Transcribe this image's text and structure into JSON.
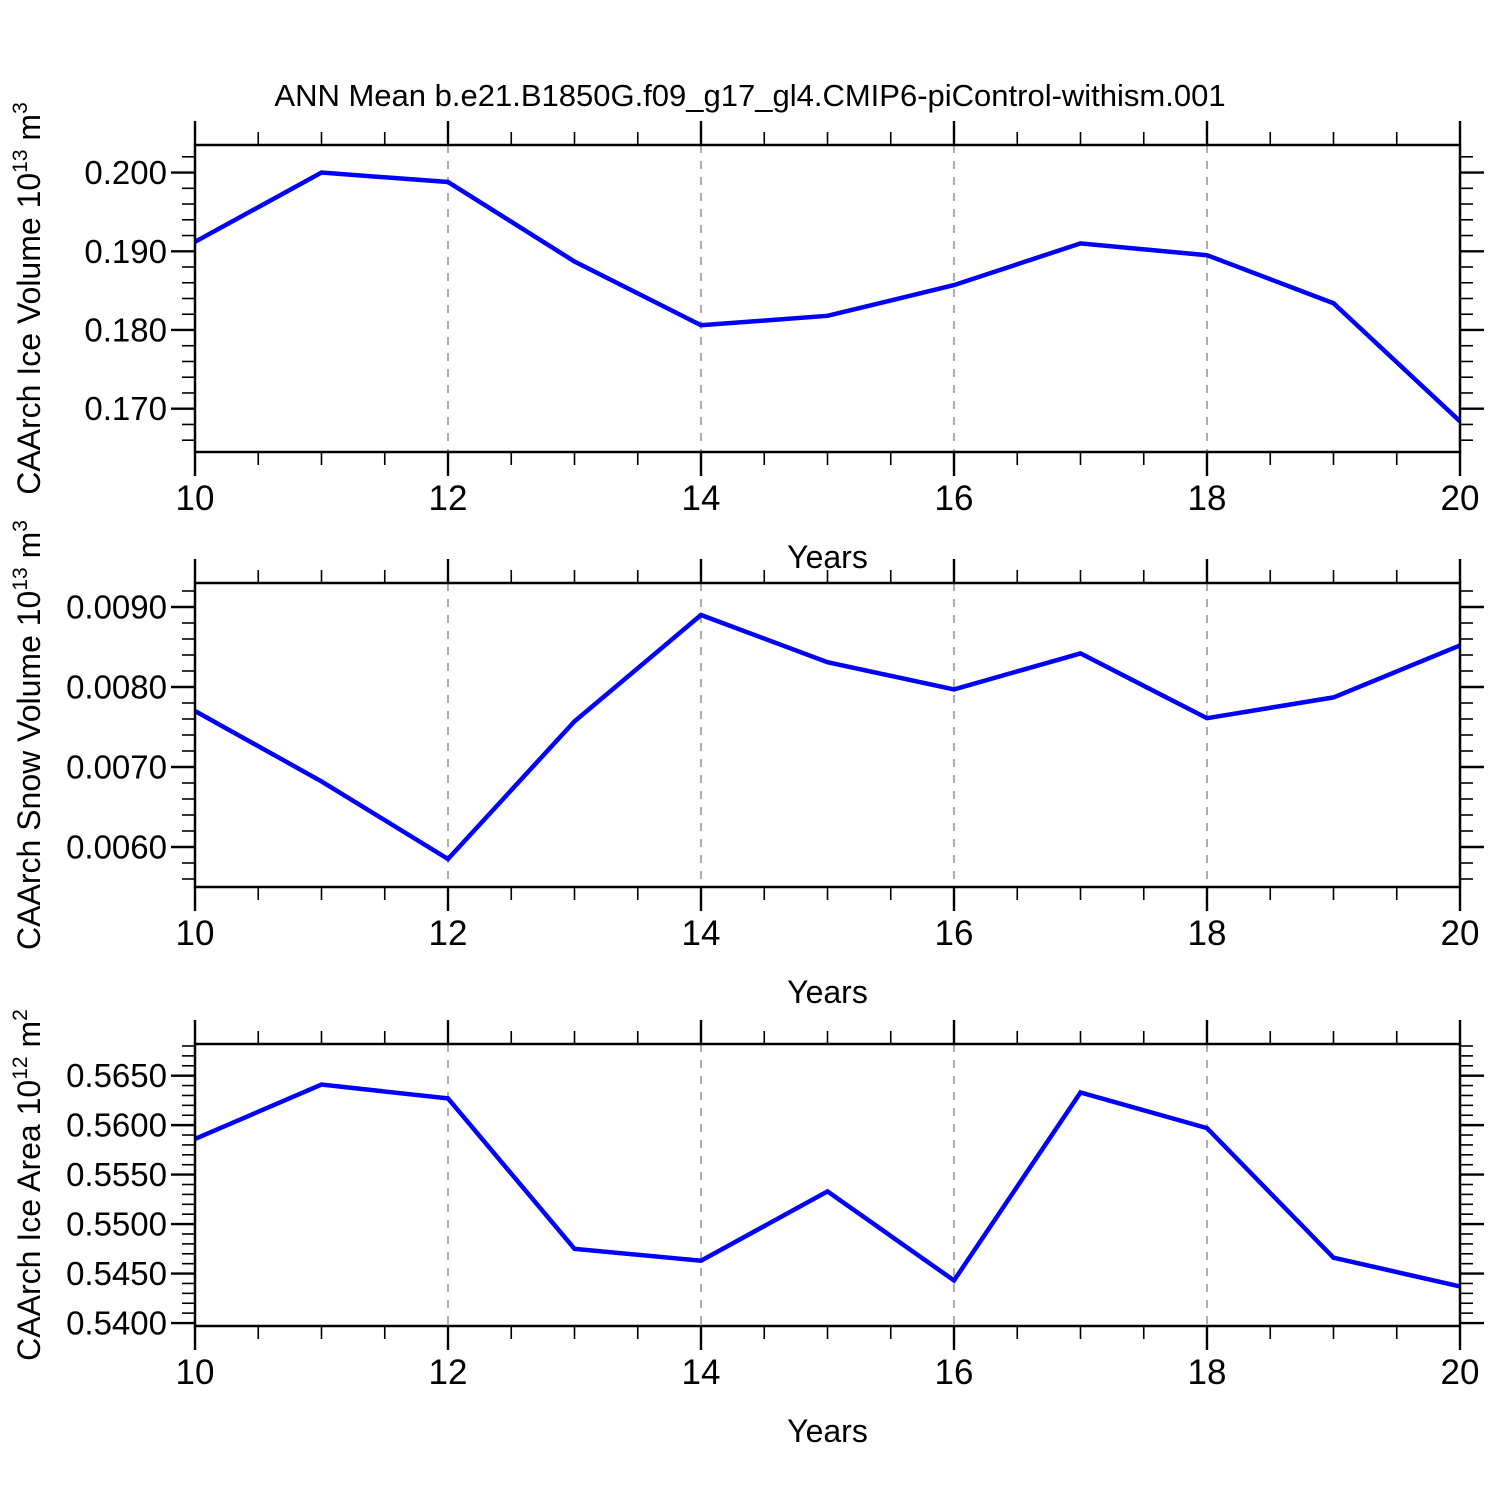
{
  "title": "ANN Mean b.e21.B1850G.f09_g17_gl4.CMIP6-piControl-withism.001",
  "colors": {
    "line": "#0000ff",
    "axis": "#000000",
    "grid": "#999999",
    "text": "#000000",
    "background": "#ffffff"
  },
  "x_axis": {
    "label": "Years",
    "ticks": [
      {
        "v": 10,
        "label": "10"
      },
      {
        "v": 12,
        "label": "12"
      },
      {
        "v": 14,
        "label": "14"
      },
      {
        "v": 16,
        "label": "16"
      },
      {
        "v": 18,
        "label": "18"
      },
      {
        "v": 20,
        "label": "20"
      }
    ],
    "minor_step": 0.5,
    "xlim": [
      10,
      20
    ]
  },
  "chart_data": [
    {
      "type": "line",
      "panel": "ice-volume",
      "ylabel_plain": "CAArch Ice Volume 10^13 m^3",
      "ylabel_parts": [
        {
          "t": "CAArch Ice Volume 10"
        },
        {
          "t": "13",
          "sup": true
        },
        {
          "t": " m"
        },
        {
          "t": "3",
          "sup": true
        }
      ],
      "xlabel": "Years",
      "x": [
        10,
        11,
        12,
        13,
        14,
        15,
        16,
        17,
        18,
        19,
        20
      ],
      "y": [
        0.1912,
        0.2,
        0.1988,
        0.1887,
        0.1806,
        0.1818,
        0.1857,
        0.191,
        0.1895,
        0.1834,
        0.1684
      ],
      "xlim": [
        10,
        20
      ],
      "ylim": [
        0.1645,
        0.2035
      ],
      "yticks": [
        {
          "v": 0.17,
          "label": "0.170"
        },
        {
          "v": 0.18,
          "label": "0.180"
        },
        {
          "v": 0.19,
          "label": "0.190"
        },
        {
          "v": 0.2,
          "label": "0.200"
        }
      ],
      "y_minor_step": 0.002,
      "vgrid": [
        12,
        14,
        16,
        18
      ],
      "grid": "vertical-dashed"
    },
    {
      "type": "line",
      "panel": "snow-volume",
      "ylabel_plain": "CAArch Snow Volume 10^13 m^3",
      "ylabel_parts": [
        {
          "t": "CAArch Snow Volume 10"
        },
        {
          "t": "13",
          "sup": true
        },
        {
          "t": " m"
        },
        {
          "t": "3",
          "sup": true
        }
      ],
      "xlabel": "Years",
      "x": [
        10,
        11,
        12,
        13,
        14,
        15,
        16,
        17,
        18,
        19,
        20
      ],
      "y": [
        0.0077,
        0.00682,
        0.00585,
        0.00757,
        0.0089,
        0.00831,
        0.00797,
        0.00842,
        0.00761,
        0.00787,
        0.00852
      ],
      "xlim": [
        10,
        20
      ],
      "ylim": [
        0.0055,
        0.0093
      ],
      "yticks": [
        {
          "v": 0.006,
          "label": "0.0060"
        },
        {
          "v": 0.007,
          "label": "0.0070"
        },
        {
          "v": 0.008,
          "label": "0.0080"
        },
        {
          "v": 0.009,
          "label": "0.0090"
        }
      ],
      "y_minor_step": 0.0002,
      "vgrid": [
        12,
        14,
        16,
        18
      ],
      "grid": "vertical-dashed"
    },
    {
      "type": "line",
      "panel": "ice-area",
      "ylabel_plain": "CAArch Ice Area 10^12 m^2",
      "ylabel_parts": [
        {
          "t": "CAArch Ice Area 10"
        },
        {
          "t": "12",
          "sup": true
        },
        {
          "t": " m"
        },
        {
          "t": "2",
          "sup": true
        }
      ],
      "xlabel": "Years",
      "x": [
        10,
        11,
        12,
        13,
        14,
        15,
        16,
        17,
        18,
        19,
        20
      ],
      "y": [
        0.5586,
        0.5641,
        0.5627,
        0.5475,
        0.5463,
        0.5533,
        0.5443,
        0.5633,
        0.5597,
        0.5466,
        0.5437
      ],
      "xlim": [
        10,
        20
      ],
      "ylim": [
        0.5397,
        0.5682
      ],
      "yticks": [
        {
          "v": 0.54,
          "label": "0.5400"
        },
        {
          "v": 0.545,
          "label": "0.5450"
        },
        {
          "v": 0.55,
          "label": "0.5500"
        },
        {
          "v": 0.555,
          "label": "0.5550"
        },
        {
          "v": 0.56,
          "label": "0.5600"
        },
        {
          "v": 0.565,
          "label": "0.5650"
        }
      ],
      "y_minor_step": 0.001,
      "vgrid": [
        12,
        14,
        16,
        18
      ],
      "grid": "vertical-dashed"
    }
  ]
}
